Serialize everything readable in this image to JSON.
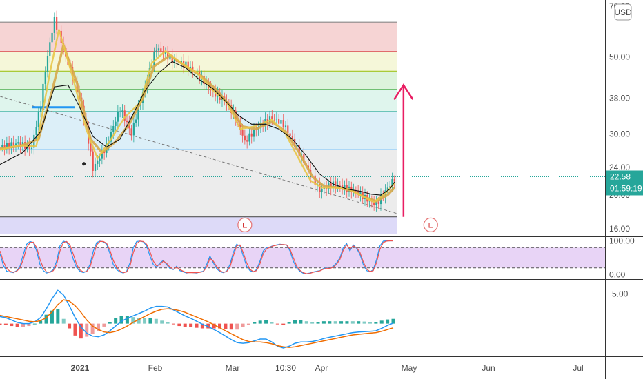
{
  "chart_data": [
    {
      "type": "candlestick",
      "title": "",
      "currency_label": "USD",
      "y_axis_scale": "log",
      "y_ticks": [
        "70.00",
        "50.00",
        "38.00",
        "30.00",
        "24.00",
        "20.00",
        "16.00"
      ],
      "y_range": [
        15.2,
        72
      ],
      "x_ticks": [
        "2021",
        "Feb",
        "Mar",
        "10:30",
        "Apr",
        "May",
        "Jun",
        "Jul"
      ],
      "last_price": "22.58",
      "countdown": "01:59:19",
      "fib_levels": [
        63.0,
        51.8,
        45.5,
        40.3,
        34.8,
        27.0,
        17.3
      ],
      "fib_band_colors": [
        "#f4cccc",
        "#f3f6d2",
        "#d6f1d6",
        "#d9f3ea",
        "#d6ecf7",
        "#e9e9e9",
        "#d7d4f7"
      ],
      "fib_line_colors": [
        "#888888",
        "#d32f2f",
        "#a2c520",
        "#4caf50",
        "#26a69a",
        "#2196f3",
        "#555555"
      ],
      "price_path": [
        [
          0,
          27.5
        ],
        [
          8,
          28.2
        ],
        [
          14,
          27.3
        ],
        [
          18,
          36.5
        ],
        [
          24,
          64
        ],
        [
          29,
          50
        ],
        [
          36,
          36
        ],
        [
          41,
          23.8
        ],
        [
          47,
          27.6
        ],
        [
          53,
          35.5
        ],
        [
          58,
          30
        ],
        [
          64,
          41
        ],
        [
          69,
          53
        ],
        [
          76,
          49
        ],
        [
          82,
          47.5
        ],
        [
          88,
          44
        ],
        [
          94,
          39.5
        ],
        [
          99,
          37.5
        ],
        [
          104,
          33.5
        ],
        [
          108,
          28.5
        ],
        [
          114,
          31.5
        ],
        [
          120,
          33.5
        ],
        [
          125,
          32
        ],
        [
          130,
          28
        ],
        [
          136,
          23.5
        ],
        [
          141,
          20.6
        ],
        [
          147,
          21.5
        ],
        [
          152,
          21
        ],
        [
          158,
          20.3
        ],
        [
          163,
          19.2
        ],
        [
          166,
          18.8
        ],
        [
          170,
          20.5
        ],
        [
          174,
          22.3
        ]
      ],
      "sma_path": [
        [
          0,
          24.5
        ],
        [
          10,
          26.5
        ],
        [
          18,
          30.5
        ],
        [
          24,
          41
        ],
        [
          30,
          41.5
        ],
        [
          35,
          36
        ],
        [
          41,
          29.5
        ],
        [
          47,
          27.5
        ],
        [
          53,
          29
        ],
        [
          59,
          34.5
        ],
        [
          64,
          40
        ],
        [
          70,
          45
        ],
        [
          76,
          48.5
        ],
        [
          82,
          46.5
        ],
        [
          88,
          43
        ],
        [
          94,
          40.5
        ],
        [
          100,
          37
        ],
        [
          105,
          34
        ],
        [
          111,
          32
        ],
        [
          117,
          32
        ],
        [
          123,
          31
        ],
        [
          129,
          29
        ],
        [
          135,
          26
        ],
        [
          141,
          23
        ],
        [
          147,
          21.5
        ],
        [
          153,
          20.8
        ],
        [
          159,
          20.5
        ],
        [
          164,
          20.1
        ],
        [
          168,
          20
        ],
        [
          172,
          20.8
        ],
        [
          174,
          21.8
        ]
      ],
      "ema_fast_path": [
        [
          0,
          27
        ],
        [
          8,
          27.8
        ],
        [
          16,
          27.6
        ],
        [
          22,
          45
        ],
        [
          26,
          60
        ],
        [
          32,
          44
        ],
        [
          38,
          31
        ],
        [
          43,
          25.5
        ],
        [
          49,
          29
        ],
        [
          55,
          33.5
        ],
        [
          62,
          37
        ],
        [
          67,
          48
        ],
        [
          73,
          52
        ],
        [
          80,
          48
        ],
        [
          87,
          45
        ],
        [
          94,
          40
        ],
        [
          100,
          37
        ],
        [
          106,
          31
        ],
        [
          112,
          31.5
        ],
        [
          120,
          33
        ],
        [
          126,
          30
        ],
        [
          131,
          26
        ],
        [
          137,
          22
        ],
        [
          142,
          21
        ],
        [
          148,
          21
        ],
        [
          154,
          20.8
        ],
        [
          160,
          19.8
        ],
        [
          165,
          19.1
        ],
        [
          170,
          20.2
        ],
        [
          174,
          21.6
        ]
      ],
      "ema_slow_path": [
        [
          0,
          27.2
        ],
        [
          9,
          27.7
        ],
        [
          17,
          29
        ],
        [
          23,
          40
        ],
        [
          28,
          54
        ],
        [
          34,
          42
        ],
        [
          40,
          29
        ],
        [
          45,
          26.5
        ],
        [
          51,
          28.5
        ],
        [
          57,
          32
        ],
        [
          63,
          38
        ],
        [
          68,
          47
        ],
        [
          75,
          50.5
        ],
        [
          82,
          47
        ],
        [
          89,
          44
        ],
        [
          95,
          40.5
        ],
        [
          101,
          36.5
        ],
        [
          107,
          31.5
        ],
        [
          113,
          31
        ],
        [
          120,
          32.5
        ],
        [
          126,
          30.5
        ],
        [
          132,
          26.5
        ],
        [
          138,
          22.5
        ],
        [
          143,
          21.2
        ],
        [
          149,
          21
        ],
        [
          155,
          20.6
        ],
        [
          161,
          19.7
        ],
        [
          166,
          19.2
        ],
        [
          171,
          20
        ],
        [
          174,
          21
        ]
      ],
      "trendline": {
        "from": [
          0,
          38.5
        ],
        "to": [
          175,
          17.7
        ]
      },
      "support_segment": {
        "from": [
          14,
          35.8
        ],
        "to": [
          33,
          35.8
        ],
        "color": "#2196f3"
      },
      "events": [
        {
          "label": "E",
          "at": [
            108,
            16.4
          ]
        },
        {
          "label": "E",
          "at": [
            190,
            16.4
          ]
        }
      ],
      "projection_arrow": {
        "from": [
          178,
          17.3
        ],
        "to": [
          178,
          41.5
        ],
        "color": "#e91e63"
      }
    },
    {
      "type": "line",
      "title": "",
      "y_ticks": [
        "100.00",
        "0.00"
      ],
      "y_range": [
        -5,
        105
      ],
      "band": [
        20,
        80
      ],
      "series": [
        {
          "name": "",
          "color": "#2196f3",
          "values": [
            62,
            28,
            10,
            8,
            6,
            12,
            25,
            60,
            90,
            98,
            95,
            70,
            30,
            12,
            5,
            8,
            15,
            40,
            85,
            99,
            96,
            80,
            45,
            20,
            10,
            6,
            10,
            30,
            70,
            95,
            99,
            97,
            90,
            62,
            30,
            15,
            8,
            5,
            10,
            35,
            80,
            98,
            99,
            97,
            85,
            55,
            30,
            22,
            35,
            42,
            30,
            18,
            15,
            25,
            12,
            8,
            5,
            7,
            6,
            5,
            8,
            10,
            30,
            55,
            35,
            18,
            9,
            6,
            10,
            30,
            65,
            90,
            85,
            55,
            25,
            12,
            8,
            15,
            40,
            70,
            80,
            82,
            86,
            88,
            90,
            89,
            88,
            70,
            40,
            20,
            10,
            4,
            3,
            5,
            8,
            10,
            12,
            18,
            20,
            18,
            25,
            35,
            50,
            80,
            92,
            70,
            88,
            78,
            60,
            30,
            12,
            8,
            15,
            45,
            85,
            99,
            100,
            100,
            100
          ]
        },
        {
          "name": "",
          "color": "#ef5350",
          "values": [
            70,
            40,
            18,
            10,
            7,
            10,
            20,
            45,
            80,
            95,
            96,
            80,
            45,
            20,
            8,
            7,
            12,
            30,
            70,
            95,
            98,
            88,
            60,
            30,
            14,
            8,
            9,
            22,
            55,
            88,
            98,
            98,
            93,
            72,
            42,
            22,
            11,
            6,
            8,
            25,
            65,
            92,
            99,
            98,
            90,
            68,
            40,
            26,
            30,
            40,
            34,
            22,
            16,
            22,
            15,
            10,
            6,
            6,
            6,
            6,
            7,
            9,
            22,
            48,
            40,
            24,
            12,
            7,
            9,
            22,
            55,
            85,
            88,
            65,
            35,
            16,
            9,
            12,
            32,
            62,
            76,
            81,
            85,
            87,
            89,
            89,
            88,
            76,
            50,
            26,
            13,
            6,
            3,
            4,
            7,
            9,
            11,
            16,
            19,
            18,
            22,
            31,
            45,
            72,
            88,
            76,
            85,
            80,
            66,
            38,
            17,
            9,
            12,
            36,
            75,
            95,
            99,
            100,
            100
          ]
        }
      ]
    },
    {
      "type": "line",
      "title": "",
      "y_ticks": [
        "5.00"
      ],
      "y_range": [
        -4.8,
        6.8
      ],
      "series": [
        {
          "name": "",
          "color": "#2196f3",
          "values": [
            1.2,
            1.0,
            0.6,
            0.2,
            0.0,
            0.0,
            0.3,
            1.0,
            2.5,
            4.2,
            5.6,
            4.8,
            3.0,
            1.0,
            -0.6,
            -1.6,
            -2.1,
            -2.2,
            -1.9,
            -1.2,
            -0.4,
            0.4,
            0.9,
            1.3,
            1.7,
            2.1,
            2.6,
            2.9,
            2.9,
            2.8,
            2.3,
            1.8,
            1.3,
            0.9,
            0.4,
            -0.1,
            -0.5,
            -1.0,
            -1.5,
            -2.1,
            -2.7,
            -3.2,
            -3.3,
            -3.2,
            -2.9,
            -2.6,
            -2.6,
            -3.1,
            -3.8,
            -4.1,
            -3.8,
            -3.3,
            -3.1,
            -3.1,
            -3.0,
            -2.8,
            -2.5,
            -2.3,
            -2.1,
            -1.9,
            -1.7,
            -1.5,
            -1.4,
            -1.35,
            -1.3,
            -1.2,
            -0.8,
            -0.3,
            0.1
          ]
        },
        {
          "name": "",
          "color": "#ef6c00",
          "values": [
            1.4,
            1.2,
            1.0,
            0.8,
            0.6,
            0.4,
            0.3,
            0.5,
            1.0,
            2.0,
            3.2,
            4.0,
            3.8,
            3.0,
            1.9,
            0.6,
            -0.4,
            -1.0,
            -1.4,
            -1.5,
            -1.3,
            -0.9,
            -0.4,
            0.2,
            0.7,
            1.2,
            1.7,
            2.1,
            2.4,
            2.5,
            2.4,
            2.2,
            1.9,
            1.5,
            1.1,
            0.7,
            0.3,
            -0.2,
            -0.7,
            -1.2,
            -1.7,
            -2.2,
            -2.7,
            -3.0,
            -3.1,
            -3.1,
            -3.2,
            -3.4,
            -3.7,
            -3.9,
            -4.0,
            -3.9,
            -3.7,
            -3.5,
            -3.3,
            -3.1,
            -2.9,
            -2.7,
            -2.5,
            -2.3,
            -2.1,
            -1.9,
            -1.8,
            -1.7,
            -1.6,
            -1.5,
            -1.3,
            -1.0,
            -0.7
          ]
        }
      ]
    }
  ]
}
